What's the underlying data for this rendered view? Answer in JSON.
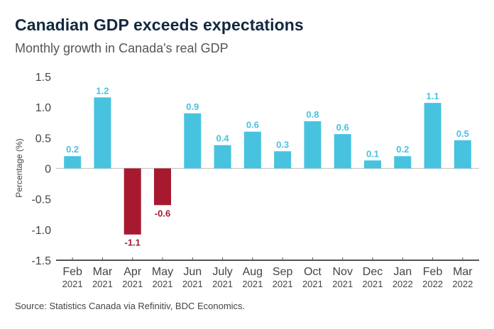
{
  "chart_data": {
    "type": "bar",
    "title": "Canadian GDP exceeds expectations",
    "subtitle": "Monthly growth in Canada's real GDP",
    "xlabel": "",
    "ylabel": "Percentage (%)",
    "ylim": [
      -1.5,
      1.5
    ],
    "yticks": [
      1.5,
      1.0,
      0.5,
      0,
      -0.5,
      -1.0,
      -1.5
    ],
    "ytick_labels": [
      "1.5",
      "1.0",
      "0.5",
      "0",
      "-0.5",
      "-1.0",
      "-1.5"
    ],
    "categories": [
      {
        "month": "Feb",
        "year": "2021"
      },
      {
        "month": "Mar",
        "year": "2021"
      },
      {
        "month": "Apr",
        "year": "2021"
      },
      {
        "month": "May",
        "year": "2021"
      },
      {
        "month": "Jun",
        "year": "2021"
      },
      {
        "month": "July",
        "year": "2021"
      },
      {
        "month": "Aug",
        "year": "2021"
      },
      {
        "month": "Sep",
        "year": "2021"
      },
      {
        "month": "Oct",
        "year": "2021"
      },
      {
        "month": "Nov",
        "year": "2021"
      },
      {
        "month": "Dec",
        "year": "2021"
      },
      {
        "month": "Jan",
        "year": "2022"
      },
      {
        "month": "Feb",
        "year": "2022"
      },
      {
        "month": "Mar",
        "year": "2022"
      }
    ],
    "values": [
      0.2,
      1.16,
      -1.08,
      -0.6,
      0.9,
      0.38,
      0.6,
      0.28,
      0.77,
      0.56,
      0.13,
      0.2,
      1.07,
      0.46
    ],
    "data_labels": [
      "0.2",
      "1.2",
      "-1.1",
      "-0.6",
      "0.9",
      "0.4",
      "0.6",
      "0.3",
      "0.8",
      "0.6",
      "0.1",
      "0.2",
      "1.1",
      "0.5"
    ],
    "colors": {
      "positive": "#47c3e0",
      "negative": "#a6192e"
    },
    "grid": false,
    "legend": "none",
    "source": "Source: Statistics Canada via Refinitiv, BDC Economics."
  }
}
